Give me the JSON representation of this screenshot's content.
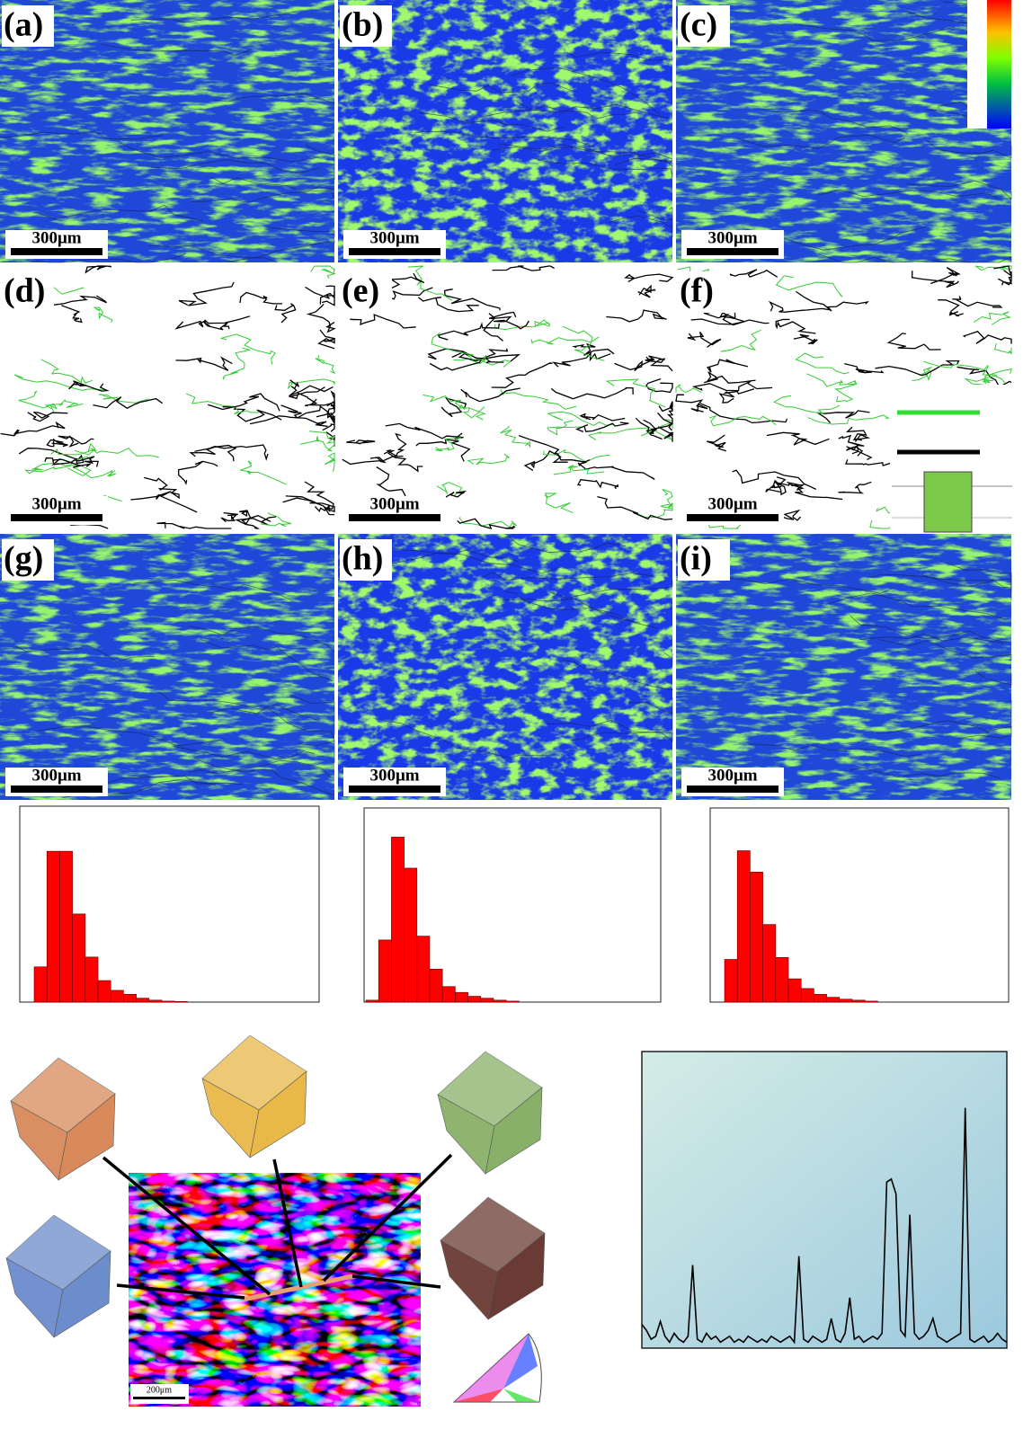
{
  "panels": [
    {
      "label": "(a)",
      "scale_bar": "300μm"
    },
    {
      "label": "(b)",
      "scale_bar": "300μm"
    },
    {
      "label": "(c)",
      "scale_bar": "300μm"
    },
    {
      "label": "(d)",
      "scale_bar": "300μm"
    },
    {
      "label": "(e)",
      "scale_bar": "300μm"
    },
    {
      "label": "(f)",
      "scale_bar": "300μm"
    },
    {
      "label": "(g)",
      "scale_bar": "300μm"
    },
    {
      "label": "(h)",
      "scale_bar": "300μm"
    },
    {
      "label": "(i)",
      "scale_bar": "300μm"
    }
  ],
  "ebsd_map": {
    "scale_bar": "200μm"
  },
  "chart_data": [
    {
      "type": "bar",
      "color": "#ff0000",
      "ylim": [
        0,
        100
      ],
      "categories": [
        null,
        null,
        null,
        null,
        null,
        null,
        null,
        null,
        null,
        null,
        null,
        null
      ],
      "values": [
        18,
        77,
        77,
        45,
        23,
        11,
        6,
        4,
        2,
        1,
        0.5,
        0.3
      ]
    },
    {
      "type": "bar",
      "color": "#ff0000",
      "ylim": [
        0,
        100
      ],
      "categories": [
        null,
        null,
        null,
        null,
        null,
        null,
        null,
        null,
        null,
        null,
        null,
        null
      ],
      "values": [
        1,
        32,
        85,
        69,
        34,
        17,
        8,
        5,
        3,
        2,
        1,
        0.5
      ]
    },
    {
      "type": "bar",
      "color": "#ff0000",
      "ylim": [
        0,
        100
      ],
      "categories": [
        null,
        null,
        null,
        null,
        null,
        null,
        null,
        null,
        null,
        null,
        null,
        null
      ],
      "values": [
        22,
        78,
        67,
        40,
        23,
        12,
        7,
        4,
        2.5,
        1.5,
        1,
        0.5
      ]
    },
    {
      "type": "line",
      "color": "#000000",
      "ylim": [
        0,
        100
      ],
      "values": [
        8,
        6,
        3,
        4,
        9,
        4,
        2,
        5,
        3,
        2,
        4,
        28,
        3,
        2,
        5,
        3,
        4,
        2,
        3,
        4,
        2,
        3,
        2,
        4,
        3,
        2,
        3,
        2,
        4,
        3,
        2,
        3,
        4,
        2,
        31,
        3,
        2,
        4,
        3,
        2,
        3,
        10,
        3,
        2,
        5,
        17,
        3,
        4,
        2,
        3,
        4,
        3,
        5,
        56,
        57,
        52,
        6,
        4,
        45,
        5,
        3,
        4,
        6,
        10,
        4,
        3,
        2,
        3,
        4,
        5,
        81,
        3,
        2,
        3,
        4,
        2,
        3,
        5,
        3,
        2
      ]
    }
  ]
}
